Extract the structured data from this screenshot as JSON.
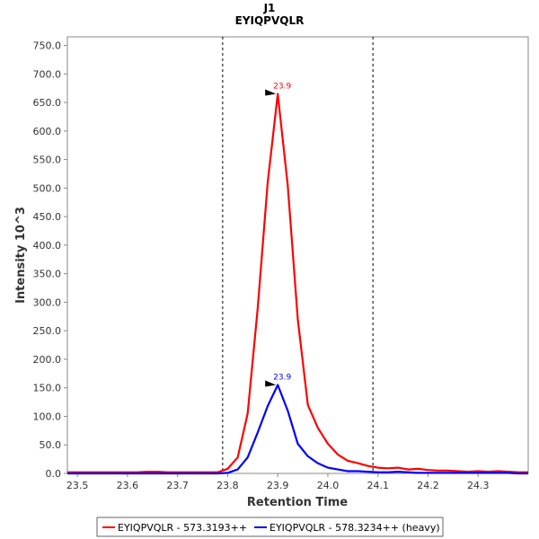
{
  "chart_data": {
    "type": "line",
    "title": "J1",
    "subtitle": "EYIQPVQLR",
    "xlabel": "Retention Time",
    "ylabel": "Intensity 10^3",
    "xlim": [
      23.48,
      24.4
    ],
    "ylim": [
      0,
      765
    ],
    "x_ticks": [
      "23.5",
      "23.6",
      "23.7",
      "23.8",
      "23.9",
      "24.0",
      "24.1",
      "24.2",
      "24.3"
    ],
    "y_ticks": [
      "0.0",
      "50.0",
      "100.0",
      "150.0",
      "200.0",
      "250.0",
      "300.0",
      "350.0",
      "400.0",
      "450.0",
      "500.0",
      "550.0",
      "600.0",
      "650.0",
      "700.0",
      "750.0"
    ],
    "grid": false,
    "legend_position": "bottom",
    "boundaries": [
      23.79,
      24.09
    ],
    "series": [
      {
        "name": "EYIQPVQLR - 573.3193++",
        "color": "#ff0000",
        "peak_label": "23.9",
        "peak": [
          23.9,
          665
        ],
        "x": [
          23.48,
          23.5,
          23.52,
          23.54,
          23.56,
          23.58,
          23.6,
          23.62,
          23.64,
          23.66,
          23.68,
          23.7,
          23.72,
          23.74,
          23.76,
          23.78,
          23.8,
          23.82,
          23.84,
          23.86,
          23.88,
          23.9,
          23.92,
          23.94,
          23.96,
          23.98,
          24.0,
          24.02,
          24.04,
          24.06,
          24.08,
          24.1,
          24.12,
          24.14,
          24.16,
          24.18,
          24.2,
          24.22,
          24.24,
          24.26,
          24.28,
          24.3,
          24.32,
          24.34,
          24.36,
          24.38,
          24.4
        ],
        "y": [
          2,
          2,
          2,
          2,
          2,
          2,
          2,
          2,
          3,
          3,
          2,
          2,
          2,
          2,
          2,
          2,
          8,
          28,
          105,
          290,
          510,
          665,
          505,
          270,
          120,
          80,
          52,
          33,
          22,
          18,
          13,
          10,
          9,
          10,
          7,
          8,
          6,
          5,
          5,
          4,
          3,
          4,
          3,
          4,
          3,
          2,
          2
        ]
      },
      {
        "name": "EYIQPVQLR - 578.3234++ (heavy)",
        "color": "#0000ff",
        "peak_label": "23.9",
        "peak": [
          23.9,
          155
        ],
        "x": [
          23.48,
          23.5,
          23.52,
          23.54,
          23.56,
          23.58,
          23.6,
          23.62,
          23.64,
          23.66,
          23.68,
          23.7,
          23.72,
          23.74,
          23.76,
          23.78,
          23.8,
          23.82,
          23.84,
          23.86,
          23.88,
          23.9,
          23.92,
          23.94,
          23.96,
          23.98,
          24.0,
          24.02,
          24.04,
          24.06,
          24.08,
          24.1,
          24.12,
          24.14,
          24.16,
          24.18,
          24.2,
          24.22,
          24.24,
          24.26,
          24.28,
          24.3,
          24.32,
          24.34,
          24.36,
          24.38,
          24.4
        ],
        "y": [
          0,
          0,
          0,
          0,
          0,
          0,
          0,
          0,
          0,
          0,
          0,
          0,
          0,
          0,
          0,
          0,
          1,
          7,
          28,
          72,
          118,
          155,
          110,
          52,
          30,
          18,
          10,
          7,
          4,
          4,
          3,
          2,
          2,
          3,
          2,
          1,
          1,
          1,
          1,
          1,
          1,
          1,
          1,
          1,
          1,
          0,
          0
        ]
      }
    ]
  }
}
